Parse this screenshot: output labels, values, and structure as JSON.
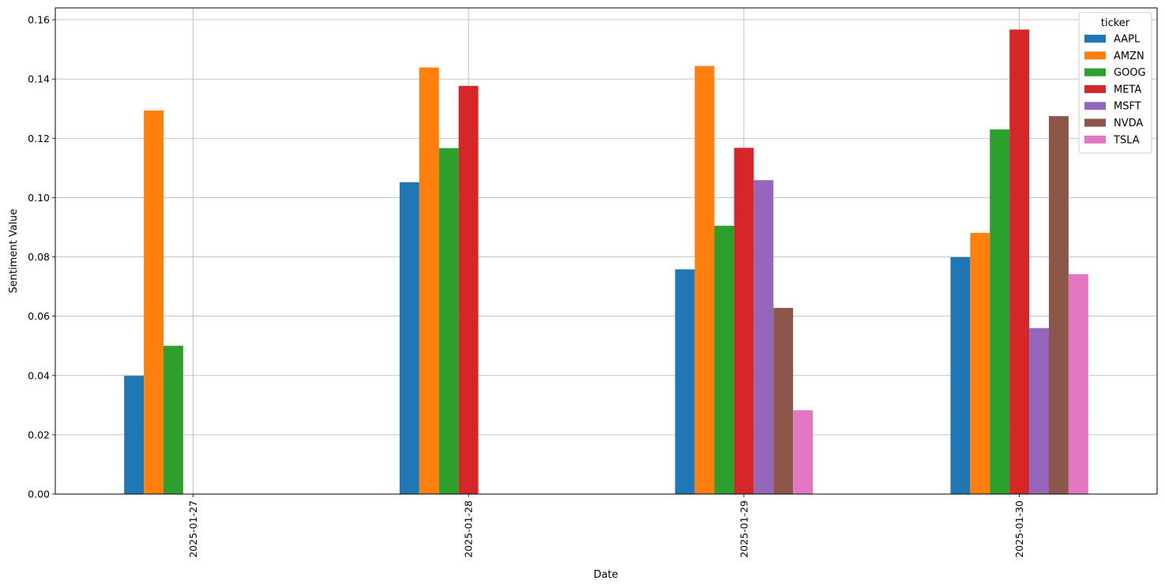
{
  "chart_data": {
    "type": "bar",
    "xlabel": "Date",
    "ylabel": "Sentiment Value",
    "categories": [
      "2025-01-27",
      "2025-01-28",
      "2025-01-29",
      "2025-01-30"
    ],
    "ylim": [
      0,
      0.164
    ],
    "yticks": [
      "0.00",
      "0.02",
      "0.04",
      "0.06",
      "0.08",
      "0.10",
      "0.12",
      "0.14",
      "0.16"
    ],
    "grid": true,
    "legend": {
      "title": "ticker",
      "placement": "top-right"
    },
    "series": [
      {
        "name": "AAPL",
        "color": "#1f77b4",
        "values": [
          0.0399,
          0.1052,
          0.0758,
          0.0799
        ]
      },
      {
        "name": "AMZN",
        "color": "#ff7f0e",
        "values": [
          0.1294,
          0.1439,
          0.1444,
          0.0881
        ]
      },
      {
        "name": "GOOG",
        "color": "#2ca02c",
        "values": [
          0.05,
          0.1167,
          0.0905,
          0.123
        ]
      },
      {
        "name": "META",
        "color": "#d62728",
        "values": [
          null,
          0.1377,
          0.1168,
          0.1567
        ]
      },
      {
        "name": "MSFT",
        "color": "#9467bd",
        "values": [
          null,
          null,
          0.1059,
          0.056
        ]
      },
      {
        "name": "NVDA",
        "color": "#8c564b",
        "values": [
          null,
          null,
          0.0628,
          0.1275
        ]
      },
      {
        "name": "TSLA",
        "color": "#e377c2",
        "values": [
          null,
          null,
          0.0283,
          0.0742
        ]
      }
    ]
  }
}
